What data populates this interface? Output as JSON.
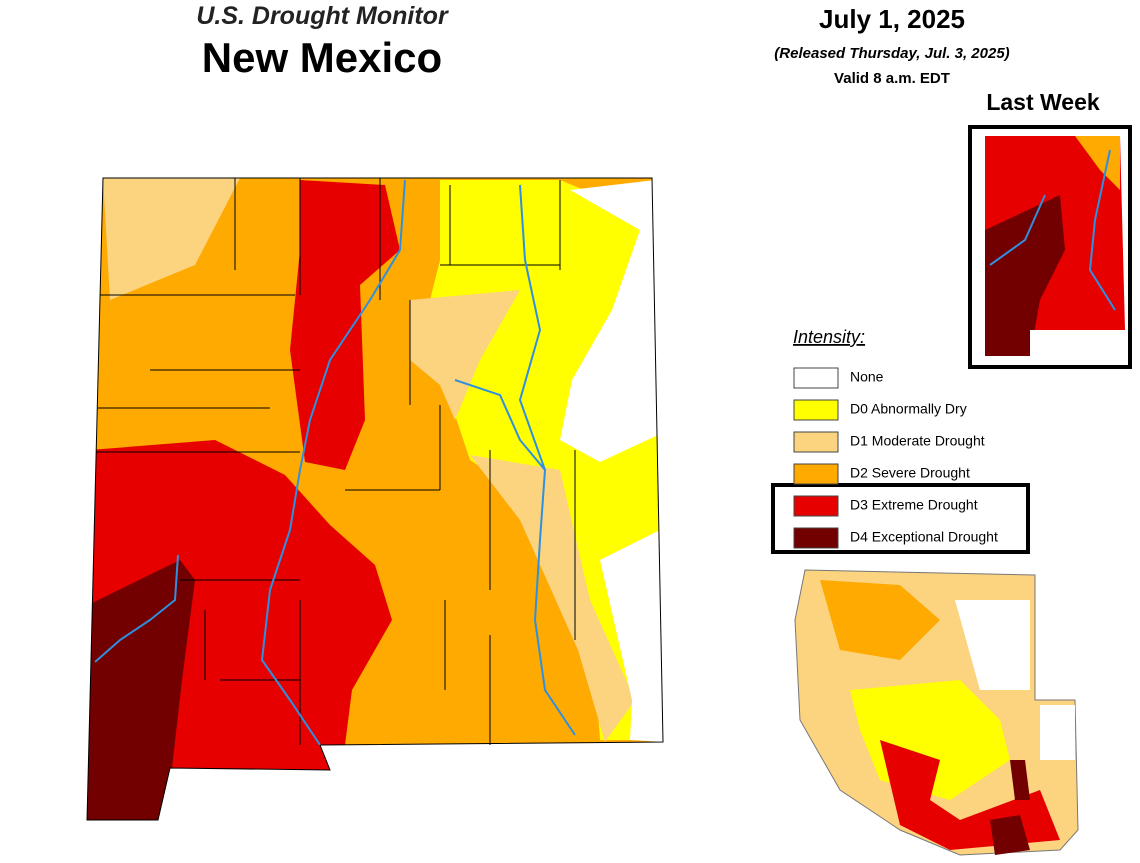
{
  "header": {
    "title": "U.S. Drought Monitor",
    "state": "New Mexico",
    "date": "July 1, 2025",
    "released": "(Released Thursday, Jul. 3, 2025)",
    "valid": "Valid 8 a.m. EDT"
  },
  "inset": {
    "title": "Last Week"
  },
  "legend": {
    "title": "Intensity:",
    "items": [
      {
        "label": "None",
        "color": "#ffffff"
      },
      {
        "label": "D0 Abnormally Dry",
        "color": "#ffff00"
      },
      {
        "label": "D1 Moderate Drought",
        "color": "#fcd37f"
      },
      {
        "label": "D2 Severe Drought",
        "color": "#ffaa00"
      },
      {
        "label": "D3 Extreme Drought",
        "color": "#e60000"
      },
      {
        "label": "D4 Exceptional Drought",
        "color": "#730000"
      }
    ]
  }
}
